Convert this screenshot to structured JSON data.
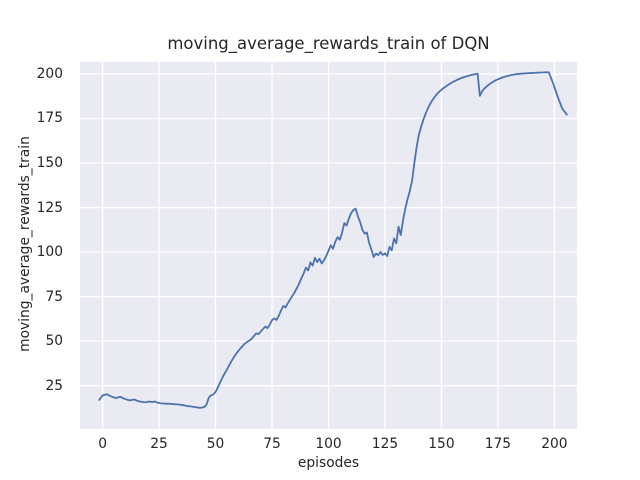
{
  "colors": {
    "figure_bg": "#ffffff",
    "plot_bg": "#eaeaf2",
    "grid": "#ffffff",
    "text": "#262626",
    "line": "#4c72b0"
  },
  "chart_data": {
    "type": "line",
    "title": "moving_average_rewards_train of DQN",
    "xlabel": "episodes",
    "ylabel": "moving_average_rewards_train",
    "xlim": [
      -10,
      210
    ],
    "ylim": [
      0.7,
      206.7
    ],
    "xticks": [
      0,
      25,
      50,
      75,
      100,
      125,
      150,
      175,
      200
    ],
    "yticks": [
      25,
      50,
      75,
      100,
      125,
      150,
      175,
      200
    ],
    "grid": true,
    "legend": null,
    "line_width": 1.8,
    "grid_width": 1.3,
    "series": [
      {
        "name": "moving_average_rewards_train",
        "color": "#4c72b0",
        "points": [
          [
            -1.5,
            17.0
          ],
          [
            0,
            19.5
          ],
          [
            1,
            19.9
          ],
          [
            2,
            20.2
          ],
          [
            3,
            19.4
          ],
          [
            4,
            18.9
          ],
          [
            5,
            18.4
          ],
          [
            6,
            18.1
          ],
          [
            7,
            18.5
          ],
          [
            8,
            18.7
          ],
          [
            9,
            18.0
          ],
          [
            10,
            17.5
          ],
          [
            11,
            17.1
          ],
          [
            12,
            16.8
          ],
          [
            13,
            17.0
          ],
          [
            14,
            17.3
          ],
          [
            15,
            16.7
          ],
          [
            16,
            16.3
          ],
          [
            17,
            16.0
          ],
          [
            18,
            15.8
          ],
          [
            19,
            15.7
          ],
          [
            20,
            15.9
          ],
          [
            21,
            16.1
          ],
          [
            22,
            15.8
          ],
          [
            23,
            16.2
          ],
          [
            24,
            15.6
          ],
          [
            25,
            15.3
          ],
          [
            26,
            15.1
          ],
          [
            27,
            15.0
          ],
          [
            28,
            14.9
          ],
          [
            29,
            14.9
          ],
          [
            30,
            14.8
          ],
          [
            31,
            14.7
          ],
          [
            32,
            14.6
          ],
          [
            33,
            14.5
          ],
          [
            34,
            14.4
          ],
          [
            35,
            14.2
          ],
          [
            36,
            14.0
          ],
          [
            37,
            13.7
          ],
          [
            38,
            13.5
          ],
          [
            39,
            13.4
          ],
          [
            40,
            13.2
          ],
          [
            41,
            13.0
          ],
          [
            42,
            12.8
          ],
          [
            43,
            12.6
          ],
          [
            44,
            12.7
          ],
          [
            45,
            13.1
          ],
          [
            46,
            14.3
          ],
          [
            47,
            18.3
          ],
          [
            48,
            19.6
          ],
          [
            49,
            20.1
          ],
          [
            50,
            21.5
          ],
          [
            51,
            24.0
          ],
          [
            52,
            26.8
          ],
          [
            53,
            29.4
          ],
          [
            54,
            31.8
          ],
          [
            55,
            34.0
          ],
          [
            56,
            36.3
          ],
          [
            57,
            38.7
          ],
          [
            58,
            40.8
          ],
          [
            59,
            42.7
          ],
          [
            60,
            44.4
          ],
          [
            61,
            45.9
          ],
          [
            62,
            47.3
          ],
          [
            63,
            48.6
          ],
          [
            64,
            49.6
          ],
          [
            65,
            50.3
          ],
          [
            66,
            51.4
          ],
          [
            67,
            52.9
          ],
          [
            68,
            54.4
          ],
          [
            69,
            53.9
          ],
          [
            70,
            55.4
          ],
          [
            71,
            56.8
          ],
          [
            72,
            58.2
          ],
          [
            73,
            57.3
          ],
          [
            74,
            59.2
          ],
          [
            75,
            61.8
          ],
          [
            76,
            62.8
          ],
          [
            77,
            61.9
          ],
          [
            78,
            64.3
          ],
          [
            79,
            67.2
          ],
          [
            80,
            69.8
          ],
          [
            81,
            68.9
          ],
          [
            82,
            71.3
          ],
          [
            83,
            73.4
          ],
          [
            84,
            75.4
          ],
          [
            85,
            77.4
          ],
          [
            86,
            79.8
          ],
          [
            87,
            82.3
          ],
          [
            88,
            85.3
          ],
          [
            89,
            88.0
          ],
          [
            90,
            91.3
          ],
          [
            91,
            89.7
          ],
          [
            92,
            94.2
          ],
          [
            93,
            92.4
          ],
          [
            94,
            96.8
          ],
          [
            95,
            94.4
          ],
          [
            96,
            96.3
          ],
          [
            97,
            93.6
          ],
          [
            98,
            95.4
          ],
          [
            99,
            97.8
          ],
          [
            100,
            100.8
          ],
          [
            101,
            103.8
          ],
          [
            102,
            101.9
          ],
          [
            103,
            105.8
          ],
          [
            104,
            108.4
          ],
          [
            105,
            106.9
          ],
          [
            106,
            110.8
          ],
          [
            107,
            116.3
          ],
          [
            108,
            114.9
          ],
          [
            109,
            118.8
          ],
          [
            110,
            121.8
          ],
          [
            111,
            123.6
          ],
          [
            112,
            124.4
          ],
          [
            113,
            120.1
          ],
          [
            114,
            116.9
          ],
          [
            115,
            112.6
          ],
          [
            116,
            110.4
          ],
          [
            117,
            111.0
          ],
          [
            118,
            105.1
          ],
          [
            119,
            101.4
          ],
          [
            120,
            97.2
          ],
          [
            121,
            99.2
          ],
          [
            122,
            98.3
          ],
          [
            123,
            100.1
          ],
          [
            124,
            98.4
          ],
          [
            125,
            99.3
          ],
          [
            126,
            97.8
          ],
          [
            127,
            102.9
          ],
          [
            128,
            101.0
          ],
          [
            129,
            107.6
          ],
          [
            130,
            104.9
          ],
          [
            131,
            114.2
          ],
          [
            132,
            109.6
          ],
          [
            133,
            117.9
          ],
          [
            134,
            124.4
          ],
          [
            135,
            129.8
          ],
          [
            136,
            134.3
          ],
          [
            137,
            140.0
          ],
          [
            138,
            150.0
          ],
          [
            139,
            158.8
          ],
          [
            140,
            165.8
          ],
          [
            141,
            170.4
          ],
          [
            142,
            174.3
          ],
          [
            143,
            177.7
          ],
          [
            144,
            180.7
          ],
          [
            145,
            183.2
          ],
          [
            146,
            185.3
          ],
          [
            147,
            187.1
          ],
          [
            148,
            188.7
          ],
          [
            149,
            190.0
          ],
          [
            150,
            191.1
          ],
          [
            151,
            192.1
          ],
          [
            152,
            193.0
          ],
          [
            153,
            193.9
          ],
          [
            154,
            194.7
          ],
          [
            155,
            195.4
          ],
          [
            156,
            196.1
          ],
          [
            157,
            196.7
          ],
          [
            158,
            197.3
          ],
          [
            159,
            197.8
          ],
          [
            160,
            198.2
          ],
          [
            161,
            198.6
          ],
          [
            162,
            199.0
          ],
          [
            163,
            199.3
          ],
          [
            164,
            199.6
          ],
          [
            165,
            199.9
          ],
          [
            166,
            200.1
          ],
          [
            167,
            187.7
          ],
          [
            168,
            190.3
          ],
          [
            169,
            191.8
          ],
          [
            170,
            193.0
          ],
          [
            171,
            194.0
          ],
          [
            172,
            194.9
          ],
          [
            173,
            195.7
          ],
          [
            174,
            196.4
          ],
          [
            175,
            197.0
          ],
          [
            176,
            197.5
          ],
          [
            177,
            198.0
          ],
          [
            178,
            198.4
          ],
          [
            179,
            198.8
          ],
          [
            180,
            199.1
          ],
          [
            181,
            199.4
          ],
          [
            182,
            199.6
          ],
          [
            183,
            199.8
          ],
          [
            184,
            200.0
          ],
          [
            185,
            200.1
          ],
          [
            186,
            200.2
          ],
          [
            187,
            200.3
          ],
          [
            188,
            200.4
          ],
          [
            189,
            200.5
          ],
          [
            190,
            200.5
          ],
          [
            191,
            200.6
          ],
          [
            192,
            200.7
          ],
          [
            193,
            200.7
          ],
          [
            194,
            200.8
          ],
          [
            195,
            200.8
          ],
          [
            196,
            200.9
          ],
          [
            197.5,
            200.9
          ],
          [
            199.5,
            194.5
          ],
          [
            201.5,
            187.0
          ],
          [
            203.5,
            180.5
          ],
          [
            205.5,
            177.2
          ]
        ]
      }
    ]
  }
}
